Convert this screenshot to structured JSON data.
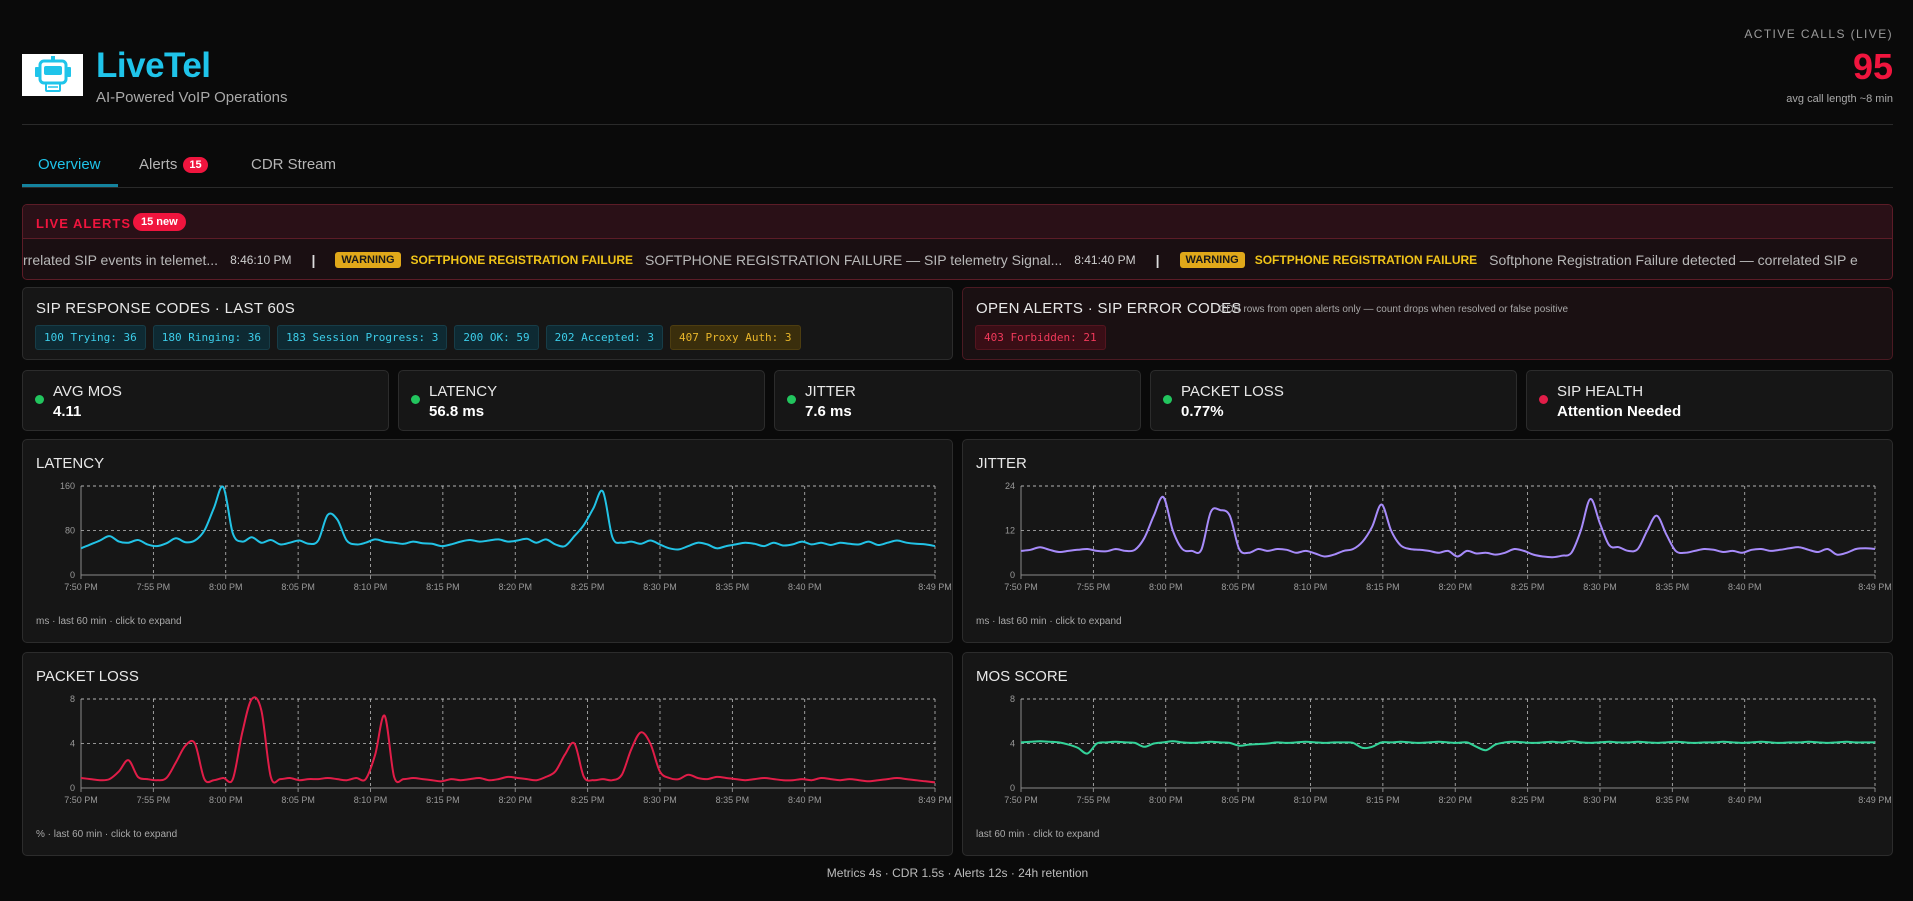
{
  "header": {
    "brand": "LiveTel",
    "tagline": "AI-Powered VoIP Operations",
    "active_calls_label": "ACTIVE CALLS (LIVE)",
    "active_calls_value": "95",
    "active_calls_sub": "avg call length ~8 min"
  },
  "tabs": {
    "overview": "Overview",
    "alerts": "Alerts",
    "alerts_count": "15",
    "cdr": "CDR Stream"
  },
  "live_alerts": {
    "title": "LIVE ALERTS",
    "new_badge": "15 new",
    "items": [
      {
        "text": "rrelated SIP events in telemet...",
        "time": "8:46:10 PM"
      },
      {
        "level": "WARNING",
        "type": "SOFTPHONE REGISTRATION FAILURE",
        "text": "SOFTPHONE REGISTRATION FAILURE — SIP telemetry Signal...",
        "time": "8:41:40 PM"
      },
      {
        "level": "WARNING",
        "type": "SOFTPHONE REGISTRATION FAILURE",
        "text": "Softphone Registration Failure detected — correlated SIP e"
      }
    ]
  },
  "sip_codes": {
    "title": "SIP RESPONSE CODES · LAST 60S",
    "codes": [
      {
        "label": "100 Trying: 36",
        "status": "ok"
      },
      {
        "label": "180 Ringing: 36",
        "status": "ok"
      },
      {
        "label": "183 Session Progress: 3",
        "status": "ok"
      },
      {
        "label": "200 OK: 59",
        "status": "ok"
      },
      {
        "label": "202 Accepted: 3",
        "status": "ok"
      },
      {
        "label": "407 Proxy Auth: 3",
        "status": "warn"
      }
    ]
  },
  "open_alerts": {
    "title": "OPEN ALERTS · SIP ERROR CODES",
    "note": "CDR rows from open alerts only — count drops when resolved or false positive",
    "codes": [
      {
        "label": "403 Forbidden: 21",
        "status": "err"
      }
    ]
  },
  "metrics": [
    {
      "label": "AVG MOS",
      "value": "4.11",
      "status": "good"
    },
    {
      "label": "LATENCY",
      "value": "56.8 ms",
      "status": "good"
    },
    {
      "label": "JITTER",
      "value": "7.6 ms",
      "status": "good"
    },
    {
      "label": "PACKET LOSS",
      "value": "0.77%",
      "status": "good"
    },
    {
      "label": "SIP HEALTH",
      "value": "Attention Needed",
      "status": "bad"
    }
  ],
  "colors": {
    "accent": "#1fc4ea",
    "danger": "#f0153e",
    "latency": "#22c3e6",
    "jitter": "#a78bfa",
    "packet_loss": "#e11d48",
    "mos": "#34d399"
  },
  "footer": "Metrics 4s · CDR 1.5s · Alerts 12s · 24h retention",
  "chart_data": [
    {
      "type": "line",
      "title": "LATENCY",
      "footnote": "ms · last 60 min · click to expand",
      "x_ticks": [
        "7:50 PM",
        "7:55 PM",
        "8:00 PM",
        "8:05 PM",
        "8:10 PM",
        "8:15 PM",
        "8:20 PM",
        "8:25 PM",
        "8:30 PM",
        "8:35 PM",
        "8:40 PM",
        "8:49 PM"
      ],
      "y_ticks": [
        "0",
        "80",
        "160"
      ],
      "ylim": [
        0,
        160
      ],
      "grid": true,
      "color": "#22c3e6",
      "values": [
        48,
        55,
        62,
        70,
        60,
        58,
        63,
        55,
        52,
        57,
        66,
        59,
        62,
        80,
        120,
        158,
        75,
        60,
        68,
        58,
        63,
        55,
        58,
        62,
        56,
        62,
        108,
        100,
        62,
        55,
        58,
        64,
        60,
        58,
        56,
        60,
        57,
        56,
        52,
        55,
        60,
        63,
        60,
        62,
        64,
        60,
        62,
        65,
        58,
        64,
        55,
        52,
        70,
        90,
        120,
        150,
        68,
        58,
        60,
        56,
        62,
        55,
        48,
        46,
        52,
        58,
        55,
        48,
        52,
        55,
        58,
        56,
        52,
        58,
        53,
        55,
        60,
        55,
        58,
        54,
        58,
        56,
        55,
        60,
        54,
        58,
        62,
        58,
        56,
        55,
        52
      ]
    },
    {
      "type": "line",
      "title": "JITTER",
      "footnote": "ms · last 60 min · click to expand",
      "x_ticks": [
        "7:50 PM",
        "7:55 PM",
        "8:00 PM",
        "8:05 PM",
        "8:10 PM",
        "8:15 PM",
        "8:20 PM",
        "8:25 PM",
        "8:30 PM",
        "8:35 PM",
        "8:40 PM",
        "8:49 PM"
      ],
      "y_ticks": [
        "0",
        "12",
        "24"
      ],
      "ylim": [
        0,
        24
      ],
      "grid": true,
      "color": "#a78bfa",
      "values": [
        6.5,
        6.8,
        7.5,
        6.8,
        6.2,
        6.5,
        6.8,
        7,
        6.5,
        6.4,
        7,
        6.5,
        6.8,
        10,
        16,
        21,
        12,
        7,
        6.5,
        6.8,
        17,
        17.5,
        16,
        7,
        6,
        7,
        6.5,
        7,
        6.8,
        6,
        6.5,
        5.8,
        5,
        5.5,
        6.5,
        7,
        9,
        13,
        19,
        12,
        8,
        7,
        6.8,
        6.5,
        6,
        6.5,
        5,
        6.5,
        5.8,
        6,
        5.5,
        6,
        7,
        6.5,
        5.5,
        5,
        4.8,
        5.2,
        6,
        12,
        20.5,
        14,
        8,
        7.5,
        6.5,
        7,
        12,
        16,
        11,
        6.5,
        6,
        6.5,
        7,
        6.8,
        6.2,
        6.5,
        6,
        6.8,
        7,
        6.5,
        6.8,
        7.2,
        7.5,
        6.8,
        6.2,
        7,
        5.5,
        6,
        7,
        7.2,
        7
      ]
    },
    {
      "type": "line",
      "title": "PACKET LOSS",
      "footnote": "% · last 60 min · click to expand",
      "x_ticks": [
        "7:50 PM",
        "7:55 PM",
        "8:00 PM",
        "8:05 PM",
        "8:10 PM",
        "8:15 PM",
        "8:20 PM",
        "8:25 PM",
        "8:30 PM",
        "8:35 PM",
        "8:40 PM",
        "8:49 PM"
      ],
      "y_ticks": [
        "0",
        "4",
        "8"
      ],
      "ylim": [
        0,
        8
      ],
      "grid": true,
      "color": "#e11d48",
      "values": [
        0.9,
        0.8,
        0.7,
        0.8,
        1.5,
        2.5,
        1,
        0.8,
        0.7,
        0.9,
        2.3,
        3.8,
        4,
        0.8,
        0.7,
        0.9,
        0.8,
        5,
        8,
        7,
        1,
        0.8,
        0.9,
        0.7,
        0.8,
        0.8,
        0.9,
        0.8,
        0.7,
        0.9,
        0.8,
        3,
        6.5,
        1,
        0.8,
        0.9,
        0.8,
        0.7,
        0.6,
        0.8,
        0.7,
        0.8,
        0.9,
        0.7,
        0.8,
        1,
        0.9,
        0.8,
        0.7,
        1,
        1.5,
        3,
        4,
        1,
        0.7,
        0.8,
        0.7,
        1.2,
        3.5,
        5,
        4,
        1.5,
        0.9,
        0.8,
        1.2,
        0.9,
        0.8,
        1,
        0.9,
        0.8,
        0.7,
        0.8,
        0.9,
        0.8,
        0.7,
        0.7,
        0.8,
        0.7,
        0.9,
        0.8,
        0.7,
        0.8,
        0.7,
        0.6,
        0.7,
        0.8,
        0.9,
        0.8,
        0.7,
        0.6,
        0.5
      ]
    },
    {
      "type": "line",
      "title": "MOS SCORE",
      "footnote": "last 60 min · click to expand",
      "x_ticks": [
        "7:50 PM",
        "7:55 PM",
        "8:00 PM",
        "8:05 PM",
        "8:10 PM",
        "8:15 PM",
        "8:20 PM",
        "8:25 PM",
        "8:30 PM",
        "8:35 PM",
        "8:40 PM",
        "8:49 PM"
      ],
      "y_ticks": [
        "0",
        "4",
        "8"
      ],
      "ylim": [
        0,
        8
      ],
      "grid": true,
      "color": "#34d399",
      "values": [
        4.1,
        4.15,
        4.2,
        4.15,
        4.1,
        3.9,
        3.6,
        3.1,
        4.0,
        4.1,
        4.15,
        4.1,
        4.05,
        3.7,
        4.0,
        4.1,
        4.2,
        4.1,
        4.05,
        4.1,
        4.15,
        4.1,
        4.05,
        3.8,
        3.9,
        3.95,
        4.0,
        4.1,
        4.05,
        4.1,
        4.15,
        4.1,
        4.05,
        4.1,
        4.1,
        4.05,
        3.6,
        3.7,
        4.1,
        4.1,
        4.15,
        4.1,
        4.05,
        4.1,
        4.15,
        4.1,
        4.05,
        4.1,
        3.7,
        3.4,
        3.9,
        4.1,
        4.15,
        4.1,
        4.05,
        4.1,
        4.15,
        4.1,
        4.2,
        4.1,
        4.05,
        4.1,
        4.15,
        4.1,
        4.1,
        4.15,
        4.1,
        4.05,
        4.1,
        4.15,
        4.1,
        4.05,
        4.1,
        4.1,
        4.15,
        4.1,
        4.05,
        4.1,
        4.15,
        4.1,
        4.05,
        4.1,
        4.1,
        4.15,
        4.1,
        4.05,
        4.1,
        4.15,
        4.1,
        4.1,
        4.1
      ]
    }
  ]
}
